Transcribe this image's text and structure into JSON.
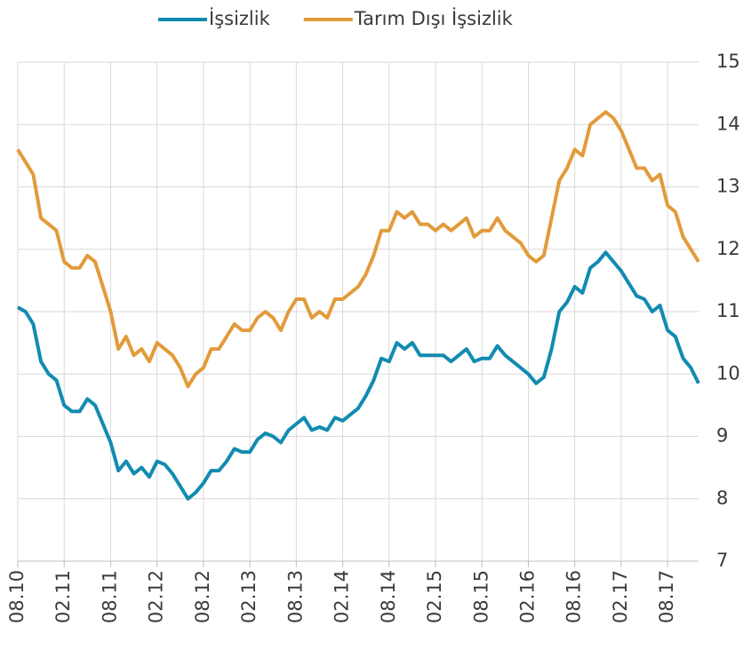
{
  "chart_data": {
    "type": "line",
    "categories": [
      "08.10",
      null,
      null,
      null,
      null,
      null,
      "02.11",
      null,
      null,
      null,
      null,
      null,
      "08.11",
      null,
      null,
      null,
      null,
      null,
      "02.12",
      null,
      null,
      null,
      null,
      null,
      "08.12",
      null,
      null,
      null,
      null,
      null,
      "02.13",
      null,
      null,
      null,
      null,
      null,
      "08.13",
      null,
      null,
      null,
      null,
      null,
      "02.14",
      null,
      null,
      null,
      null,
      null,
      "08.14",
      null,
      null,
      null,
      null,
      null,
      "02.15",
      null,
      null,
      null,
      null,
      null,
      "08.15",
      null,
      null,
      null,
      null,
      null,
      "02.16",
      null,
      null,
      null,
      null,
      null,
      "08.16",
      null,
      null,
      null,
      null,
      null,
      "02.17",
      null,
      null,
      null,
      null,
      null,
      "08.17",
      null,
      null,
      null,
      null
    ],
    "series": [
      {
        "name": "İşsizlik",
        "color": "#128bb1",
        "values": [
          11.07,
          11.0,
          10.8,
          10.2,
          10.0,
          9.9,
          9.5,
          9.4,
          9.4,
          9.6,
          9.5,
          9.2,
          8.9,
          8.45,
          8.6,
          8.4,
          8.5,
          8.35,
          8.6,
          8.55,
          8.4,
          8.2,
          8.0,
          8.1,
          8.25,
          8.45,
          8.45,
          8.6,
          8.8,
          8.75,
          8.75,
          8.95,
          9.05,
          9.0,
          8.9,
          9.1,
          9.2,
          9.3,
          9.1,
          9.15,
          9.1,
          9.3,
          9.25,
          9.35,
          9.45,
          9.65,
          9.9,
          10.25,
          10.2,
          10.5,
          10.4,
          10.5,
          10.3,
          10.3,
          10.3,
          10.3,
          10.2,
          10.3,
          10.4,
          10.2,
          10.25,
          10.25,
          10.45,
          10.3,
          10.2,
          10.1,
          10.0,
          9.85,
          9.95,
          10.4,
          11.0,
          11.15,
          11.4,
          11.3,
          11.7,
          11.8,
          11.95,
          11.8,
          11.65,
          11.45,
          11.25,
          11.2,
          11.0,
          11.1,
          10.7,
          10.6,
          10.25,
          10.1,
          9.85
        ]
      },
      {
        "name": "Tarım Dışı İşsizlik",
        "color": "#e29b3b",
        "values": [
          13.6,
          13.4,
          13.2,
          12.5,
          12.4,
          12.3,
          11.8,
          11.7,
          11.7,
          11.9,
          11.8,
          11.4,
          11.0,
          10.4,
          10.6,
          10.3,
          10.4,
          10.2,
          10.5,
          10.4,
          10.3,
          10.1,
          9.8,
          10.0,
          10.1,
          10.4,
          10.4,
          10.6,
          10.8,
          10.7,
          10.7,
          10.9,
          11.0,
          10.9,
          10.7,
          11.0,
          11.2,
          11.2,
          10.9,
          11.0,
          10.9,
          11.2,
          11.2,
          11.3,
          11.4,
          11.6,
          11.9,
          12.3,
          12.3,
          12.6,
          12.5,
          12.6,
          12.4,
          12.4,
          12.3,
          12.4,
          12.3,
          12.4,
          12.5,
          12.2,
          12.3,
          12.3,
          12.5,
          12.3,
          12.2,
          12.1,
          11.9,
          11.8,
          11.9,
          12.5,
          13.1,
          13.3,
          13.6,
          13.5,
          14.0,
          14.1,
          14.2,
          14.1,
          13.9,
          13.6,
          13.3,
          13.3,
          13.1,
          13.2,
          12.7,
          12.6,
          12.2,
          12.0,
          11.8
        ]
      }
    ],
    "ylim": [
      7,
      15
    ],
    "yticks": [
      7,
      8,
      9,
      10,
      11,
      12,
      13,
      14,
      15
    ],
    "grid": true,
    "legend": "top"
  }
}
